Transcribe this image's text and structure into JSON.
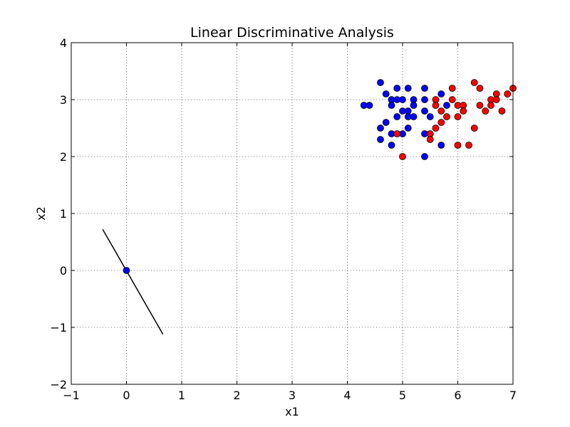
{
  "chart_data": {
    "type": "scatter",
    "title": "Linear Discriminative Analysis",
    "xlabel": "x1",
    "ylabel": "x2",
    "xlim": [
      -1,
      7
    ],
    "ylim": [
      -2,
      4
    ],
    "xticks": [
      "−1",
      "0",
      "1",
      "2",
      "3",
      "4",
      "5",
      "6",
      "7"
    ],
    "yticks": [
      "−2",
      "−1",
      "0",
      "1",
      "2",
      "3",
      "4"
    ],
    "grid": true,
    "series": [
      {
        "color": "#0000ff",
        "points": [
          [
            4.3,
            2.9
          ],
          [
            4.4,
            2.9
          ],
          [
            4.6,
            3.3
          ],
          [
            4.6,
            2.5
          ],
          [
            4.6,
            2.3
          ],
          [
            4.7,
            3.1
          ],
          [
            4.7,
            2.6
          ],
          [
            4.8,
            3.0
          ],
          [
            4.8,
            2.9
          ],
          [
            4.8,
            2.4
          ],
          [
            4.8,
            2.2
          ],
          [
            4.9,
            3.2
          ],
          [
            4.9,
            3.0
          ],
          [
            4.9,
            2.7
          ],
          [
            5.0,
            3.0
          ],
          [
            5.0,
            2.8
          ],
          [
            5.0,
            2.4
          ],
          [
            5.1,
            3.2
          ],
          [
            5.1,
            2.8
          ],
          [
            5.1,
            2.7
          ],
          [
            5.1,
            2.5
          ],
          [
            5.2,
            3.0
          ],
          [
            5.2,
            2.9
          ],
          [
            5.2,
            2.7
          ],
          [
            5.4,
            3.2
          ],
          [
            5.4,
            3.0
          ],
          [
            5.4,
            2.8
          ],
          [
            5.4,
            2.4
          ],
          [
            5.4,
            2.0
          ],
          [
            5.5,
            2.7
          ],
          [
            5.7,
            3.1
          ],
          [
            5.7,
            2.2
          ],
          [
            5.8,
            2.9
          ],
          [
            0.0,
            0.0
          ]
        ]
      },
      {
        "color": "#ff0000",
        "points": [
          [
            4.9,
            2.4
          ],
          [
            5.0,
            2.0
          ],
          [
            5.5,
            2.4
          ],
          [
            5.5,
            2.3
          ],
          [
            5.6,
            3.0
          ],
          [
            5.6,
            2.9
          ],
          [
            5.6,
            2.5
          ],
          [
            5.7,
            2.8
          ],
          [
            5.7,
            2.6
          ],
          [
            5.8,
            2.7
          ],
          [
            5.9,
            3.2
          ],
          [
            5.9,
            3.0
          ],
          [
            6.0,
            2.9
          ],
          [
            6.0,
            2.7
          ],
          [
            6.0,
            2.2
          ],
          [
            6.1,
            2.9
          ],
          [
            6.1,
            2.8
          ],
          [
            6.2,
            2.2
          ],
          [
            6.3,
            3.3
          ],
          [
            6.3,
            2.5
          ],
          [
            6.4,
            3.2
          ],
          [
            6.4,
            2.9
          ],
          [
            6.5,
            2.8
          ],
          [
            6.6,
            3.0
          ],
          [
            6.6,
            2.9
          ],
          [
            6.7,
            3.1
          ],
          [
            6.7,
            3.0
          ],
          [
            6.8,
            2.8
          ],
          [
            6.9,
            3.1
          ],
          [
            7.0,
            3.2
          ]
        ]
      }
    ],
    "line": {
      "color": "#000000",
      "points": [
        [
          -0.43,
          0.72
        ],
        [
          0.66,
          -1.12
        ]
      ]
    }
  }
}
